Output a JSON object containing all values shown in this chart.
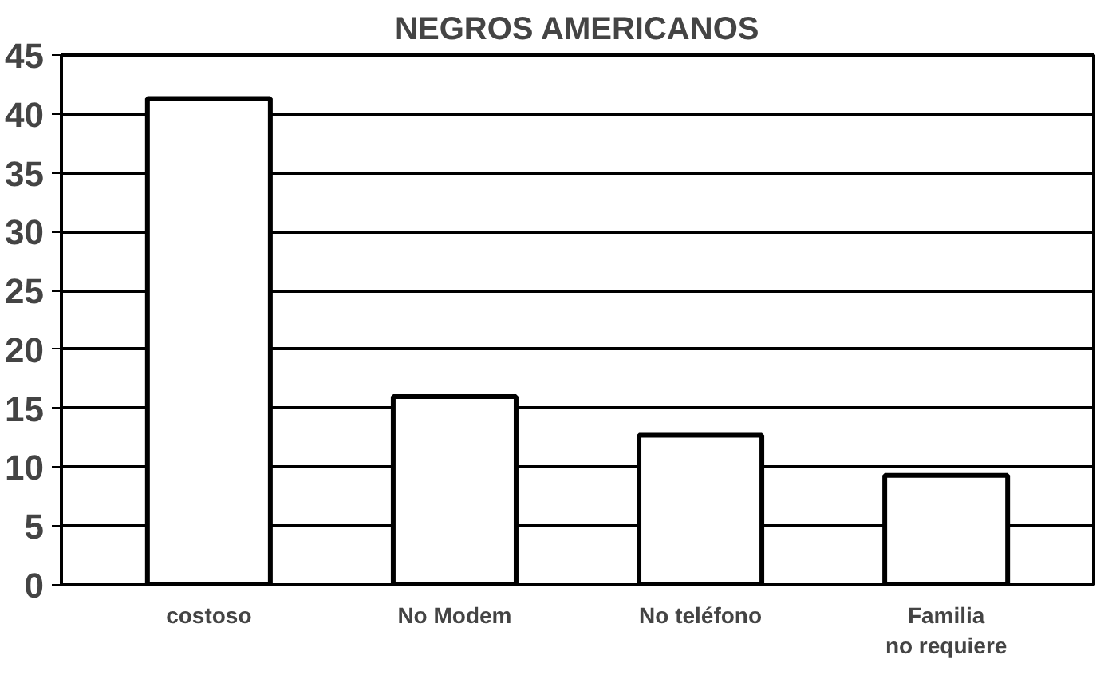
{
  "chart_data": {
    "type": "bar",
    "title": "NEGROS AMERICANOS",
    "categories": [
      "costoso",
      "No Modem",
      "No teléfono",
      "Familia\nno requiere"
    ],
    "values": [
      41.3,
      16,
      12.7,
      9.3
    ],
    "color": "#ffffff",
    "ylim": [
      0,
      45
    ],
    "yticks": [
      0,
      5,
      10,
      15,
      20,
      25,
      30,
      35,
      40,
      45
    ],
    "grid": "y"
  }
}
